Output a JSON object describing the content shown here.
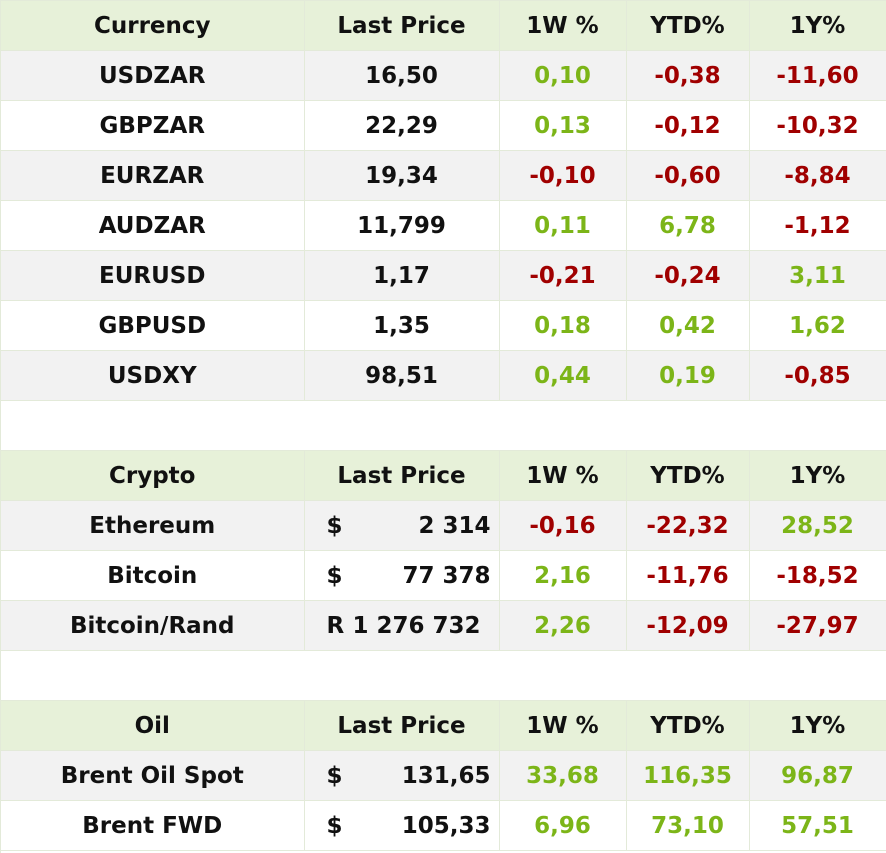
{
  "currency": {
    "headers": [
      "Currency",
      "Last Price",
      "1W %",
      "YTD%",
      "1Y%"
    ],
    "rows": [
      {
        "name": "USDZAR",
        "price": "16,50",
        "w1": "0,10",
        "ytd": "-0,38",
        "y1": "-11,60"
      },
      {
        "name": "GBPZAR",
        "price": "22,29",
        "w1": "0,13",
        "ytd": "-0,12",
        "y1": "-10,32"
      },
      {
        "name": "EURZAR",
        "price": "19,34",
        "w1": "-0,10",
        "ytd": "-0,60",
        "y1": "-8,84"
      },
      {
        "name": "AUDZAR",
        "price": "11,799",
        "w1": "0,11",
        "ytd": "6,78",
        "y1": "-1,12"
      },
      {
        "name": "EURUSD",
        "price": "1,17",
        "w1": "-0,21",
        "ytd": "-0,24",
        "y1": "3,11"
      },
      {
        "name": "GBPUSD",
        "price": "1,35",
        "w1": "0,18",
        "ytd": "0,42",
        "y1": "1,62"
      },
      {
        "name": "USDXY",
        "price": "98,51",
        "w1": "0,44",
        "ytd": "0,19",
        "y1": "-0,85"
      }
    ]
  },
  "crypto": {
    "headers": [
      "Crypto",
      "Last Price",
      "1W %",
      "YTD%",
      "1Y%"
    ],
    "rows": [
      {
        "name": "Ethereum",
        "symbol": "$",
        "price": "2 314",
        "w1": "-0,16",
        "ytd": "-22,32",
        "y1": "28,52"
      },
      {
        "name": "Bitcoin",
        "symbol": "$",
        "price": "77 378",
        "w1": "2,16",
        "ytd": "-11,76",
        "y1": "-18,52"
      },
      {
        "name": "Bitcoin/Rand",
        "symbol": "R",
        "price": "1 276 732",
        "w1": "2,26",
        "ytd": "-12,09",
        "y1": "-27,97"
      }
    ]
  },
  "oil": {
    "headers": [
      "Oil",
      "Last Price",
      "1W %",
      "YTD%",
      "1Y%"
    ],
    "rows": [
      {
        "name": "Brent Oil Spot",
        "symbol": "$",
        "price": "131,65",
        "w1": "33,68",
        "ytd": "116,35",
        "y1": "96,87"
      },
      {
        "name": "Brent FWD",
        "symbol": "$",
        "price": "105,33",
        "w1": "6,96",
        "ytd": "73,10",
        "y1": "57,51"
      }
    ]
  },
  "colors": {
    "header_bg": "#e7f1d9",
    "alt_row_bg": "#f2f2f2",
    "positive": "#7cb518",
    "negative": "#a00000",
    "grid": "#e3ead9"
  }
}
